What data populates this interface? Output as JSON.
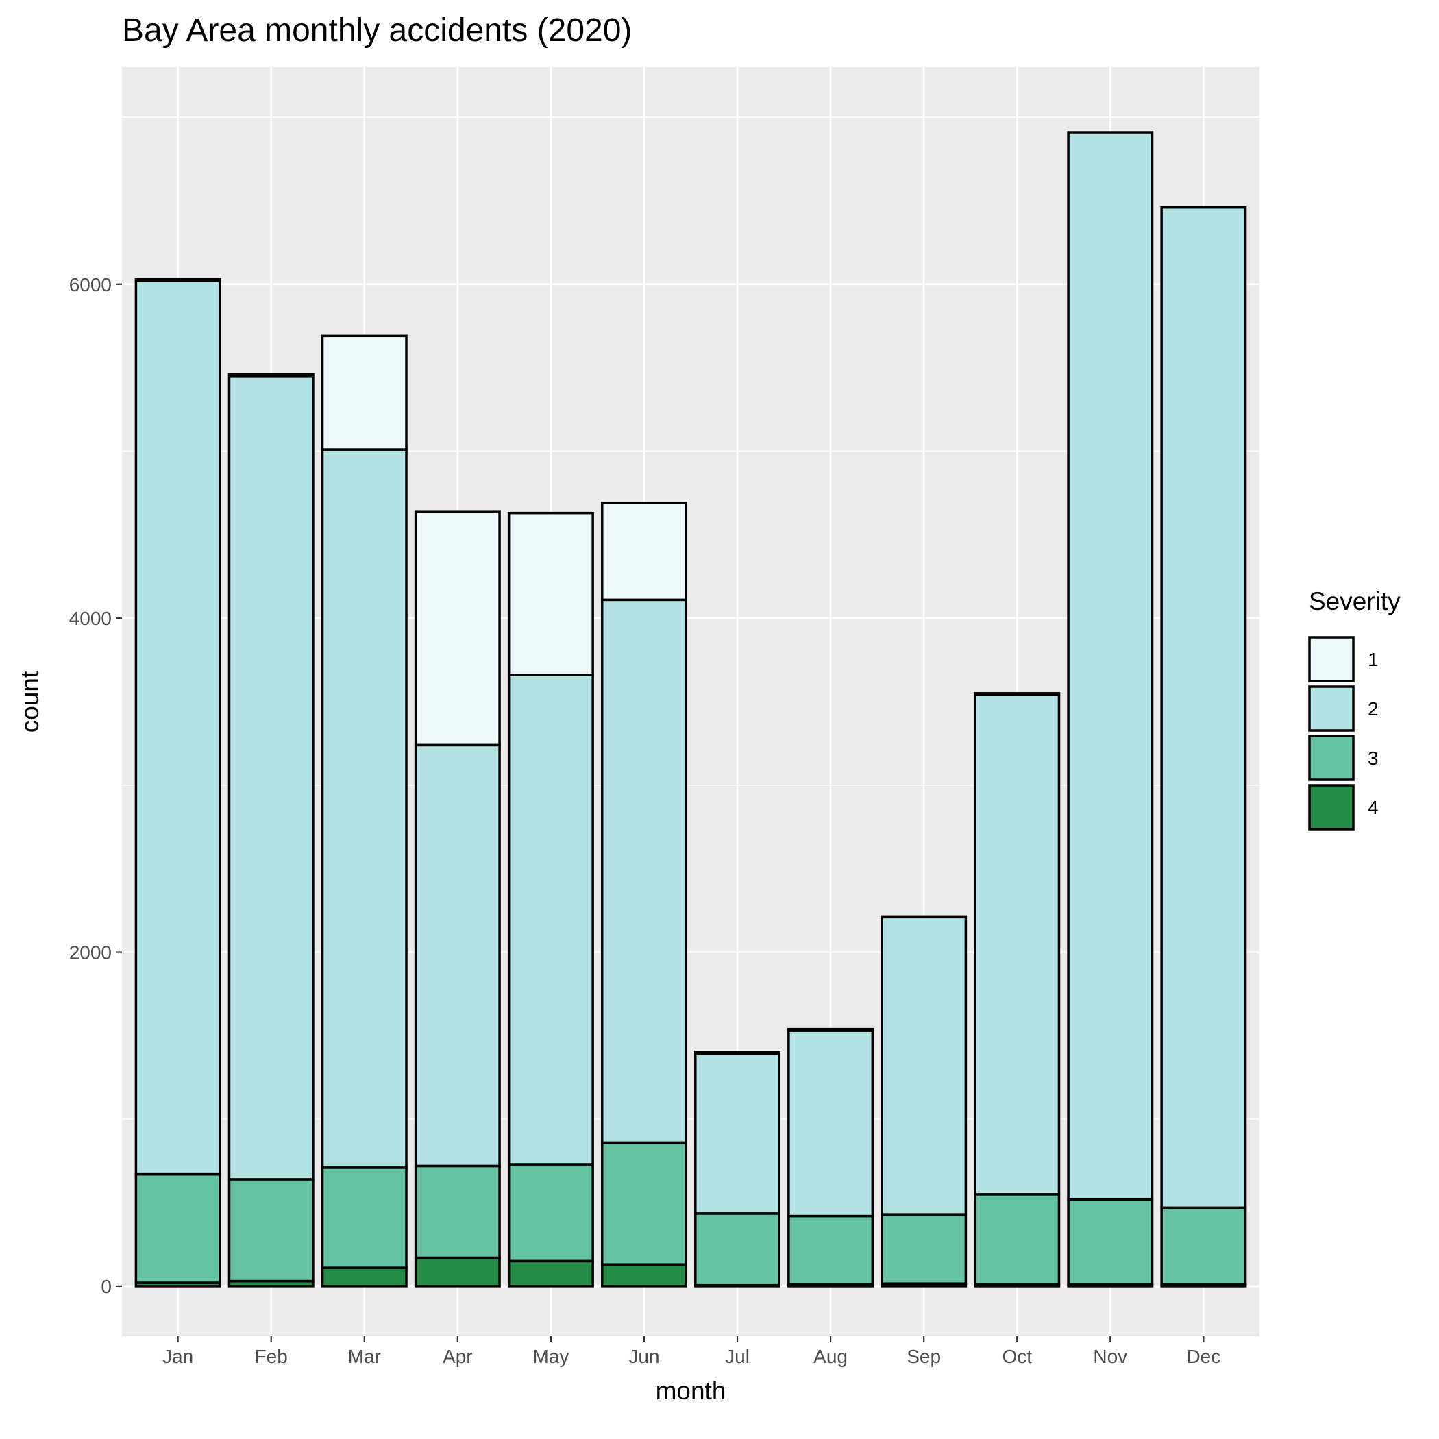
{
  "chart_data": {
    "type": "bar",
    "stacked": true,
    "title": "Bay Area monthly accidents (2020)",
    "xlabel": "month",
    "ylabel": "count",
    "ylim": [
      -300,
      7300
    ],
    "yticks": [
      0,
      2000,
      4000,
      6000
    ],
    "ytick_labels": [
      "0",
      "2000",
      "4000",
      "6000"
    ],
    "grid": true,
    "legend": {
      "title": "Severity",
      "position": "right"
    },
    "categories": [
      "Jan",
      "Feb",
      "Mar",
      "Apr",
      "May",
      "Jun",
      "Jul",
      "Aug",
      "Sep",
      "Oct",
      "Nov",
      "Dec"
    ],
    "series": [
      {
        "name": "4",
        "color": "#238b45",
        "values": [
          20,
          30,
          110,
          170,
          150,
          130,
          5,
          10,
          15,
          10,
          10,
          10
        ]
      },
      {
        "name": "3",
        "color": "#66c2a4",
        "values": [
          650,
          610,
          600,
          550,
          580,
          730,
          430,
          410,
          415,
          540,
          510,
          460
        ]
      },
      {
        "name": "2",
        "color": "#b2e2e2",
        "values": [
          5350,
          4810,
          4300,
          2520,
          2930,
          3250,
          955,
          1110,
          1780,
          2990,
          6390,
          5990
        ]
      },
      {
        "name": "1",
        "color": "#edf8fb",
        "values": [
          10,
          10,
          680,
          1400,
          970,
          580,
          10,
          10,
          0,
          10,
          0,
          0
        ]
      }
    ]
  }
}
